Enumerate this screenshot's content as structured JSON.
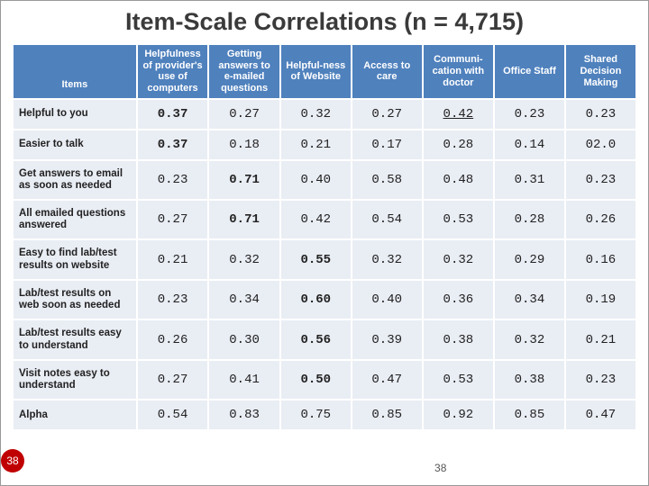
{
  "title": "Item-Scale Correlations (n = 4,715)",
  "table": {
    "type": "table",
    "background_color": "#ffffff",
    "header_bg": "#4f81bd",
    "header_text_color": "#ffffff",
    "cell_bg": "#e9edf4",
    "border_color": "#ffffff",
    "columns": [
      "Items",
      "Helpfulness of provider's use of computers",
      "Getting answers to e-mailed questions",
      "Helpful-ness of Website",
      "Access to care",
      "Communi-cation with doctor",
      "Office Staff",
      "Shared Decision Making"
    ],
    "rows": [
      {
        "label": "Helpful to you",
        "cells": [
          "0.37",
          "0.27",
          "0.32",
          "0.27",
          "0.42",
          "0.23",
          "0.23"
        ],
        "bold_idx": 0,
        "underline_idx": 4
      },
      {
        "label": "Easier to talk",
        "cells": [
          "0.37",
          "0.18",
          "0.21",
          "0.17",
          "0.28",
          "0.14",
          "02.0"
        ],
        "bold_idx": 0
      },
      {
        "label": "Get answers to email as soon as needed",
        "cells": [
          "0.23",
          "0.71",
          "0.40",
          "0.58",
          "0.48",
          "0.31",
          "0.23"
        ],
        "bold_idx": 1
      },
      {
        "label": "All emailed questions answered",
        "cells": [
          "0.27",
          "0.71",
          "0.42",
          "0.54",
          "0.53",
          "0.28",
          "0.26"
        ],
        "bold_idx": 1
      },
      {
        "label": "Easy to find lab/test results on website",
        "cells": [
          "0.21",
          "0.32",
          "0.55",
          "0.32",
          "0.32",
          "0.29",
          "0.16"
        ],
        "bold_idx": 2
      },
      {
        "label": "Lab/test results on web soon as needed",
        "cells": [
          "0.23",
          "0.34",
          "0.60",
          "0.40",
          "0.36",
          "0.34",
          "0.19"
        ],
        "bold_idx": 2
      },
      {
        "label": "Lab/test results easy to understand",
        "cells": [
          "0.26",
          "0.30",
          "0.56",
          "0.39",
          "0.38",
          "0.32",
          "0.21"
        ],
        "bold_idx": 2
      },
      {
        "label": "Visit notes easy to understand",
        "cells": [
          "0.27",
          "0.41",
          "0.50",
          "0.47",
          "0.53",
          "0.38",
          "0.23"
        ],
        "bold_idx": 2
      },
      {
        "label": "Alpha",
        "cells": [
          "0.54",
          "0.83",
          "0.75",
          "0.85",
          "0.92",
          "0.85",
          "0.47"
        ]
      }
    ]
  },
  "slide_number_badge": "38",
  "footer_number": "38"
}
